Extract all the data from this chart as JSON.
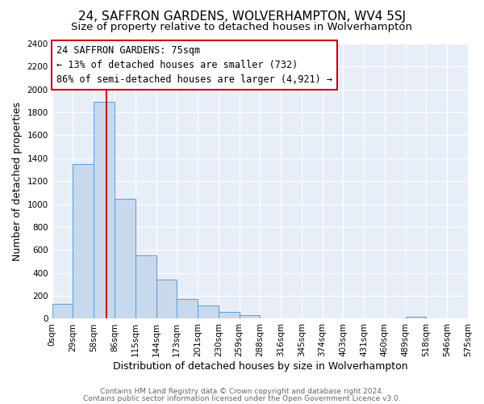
{
  "title": "24, SAFFRON GARDENS, WOLVERHAMPTON, WV4 5SJ",
  "subtitle": "Size of property relative to detached houses in Wolverhampton",
  "xlabel": "Distribution of detached houses by size in Wolverhampton",
  "ylabel": "Number of detached properties",
  "footer_line1": "Contains HM Land Registry data © Crown copyright and database right 2024.",
  "footer_line2": "Contains public sector information licensed under the Open Government Licence v3.0.",
  "annotation_title": "24 SAFFRON GARDENS: 75sqm",
  "annotation_line1": "← 13% of detached houses are smaller (732)",
  "annotation_line2": "86% of semi-detached houses are larger (4,921) →",
  "bar_heights": [
    130,
    1350,
    1890,
    1050,
    555,
    340,
    175,
    115,
    60,
    30,
    0,
    0,
    0,
    0,
    0,
    0,
    0,
    20,
    0,
    0
  ],
  "bar_labels": [
    "0sqm",
    "29sqm",
    "58sqm",
    "86sqm",
    "115sqm",
    "144sqm",
    "173sqm",
    "201sqm",
    "230sqm",
    "259sqm",
    "288sqm",
    "316sqm",
    "345sqm",
    "374sqm",
    "403sqm",
    "431sqm",
    "460sqm",
    "489sqm",
    "518sqm",
    "546sqm",
    "575sqm"
  ],
  "bar_color": "#c8d9ed",
  "bar_edge_color": "#5b9bd5",
  "vline_color": "#cc0000",
  "ylim": [
    0,
    2400
  ],
  "yticks": [
    0,
    200,
    400,
    600,
    800,
    1000,
    1200,
    1400,
    1600,
    1800,
    2000,
    2200,
    2400
  ],
  "background_color": "#ffffff",
  "plot_bg_color": "#e8eef8",
  "grid_color": "#ffffff",
  "annotation_box_edge": "#cc0000",
  "title_fontsize": 11,
  "subtitle_fontsize": 9.5,
  "axis_label_fontsize": 9,
  "tick_fontsize": 7.5,
  "footer_fontsize": 6.5,
  "annotation_fontsize": 8.5
}
